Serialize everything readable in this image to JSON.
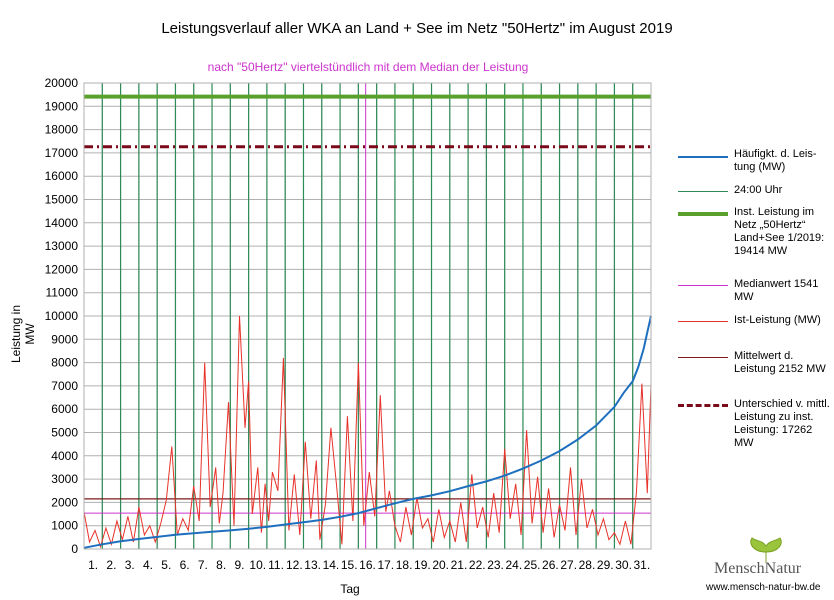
{
  "colors": {
    "frequency": "#1f6fbf",
    "midnight": "#2e8b57",
    "installed": "#5aa02c",
    "median": "#cc33cc",
    "actual": "#e8322a",
    "mean": "#7a1a1a",
    "difference": "#7a0a1a",
    "grid": "#b0b0b0"
  },
  "chart_data": {
    "type": "line",
    "title": "Leistungsverlauf aller WKA an Land + See im Netz \"50Hertz\" im August 2019",
    "subtitle": "nach \"50Hertz\" viertelstündlich mit dem Median der Leistung",
    "xlabel": "Tag",
    "ylabel": "Leistung in MW",
    "ylim": [
      0,
      20000
    ],
    "xlim": [
      0,
      31
    ],
    "y_ticks": [
      0,
      1000,
      2000,
      3000,
      4000,
      5000,
      6000,
      7000,
      8000,
      9000,
      10000,
      11000,
      12000,
      13000,
      14000,
      15000,
      16000,
      17000,
      18000,
      19000,
      20000
    ],
    "x_tick_labels": [
      "1.",
      "2.",
      "3.",
      "4.",
      "5.",
      "6.",
      "7.",
      "8.",
      "9.",
      "10.",
      "11.",
      "12.",
      "13.",
      "14.",
      "15.",
      "16.",
      "17.",
      "18.",
      "19.",
      "20.",
      "21.",
      "22.",
      "23.",
      "24.",
      "25.",
      "26.",
      "27.",
      "28.",
      "29.",
      "30.",
      "31."
    ],
    "series": [
      {
        "name": "Häufigkt. d. Leistung (MW)",
        "kind": "line",
        "x": [
          0,
          1,
          2,
          3,
          4,
          5,
          6,
          7,
          8,
          9,
          10,
          11,
          12,
          13,
          14,
          15,
          16,
          17,
          18,
          19,
          20,
          21,
          22,
          23,
          24,
          25,
          26,
          27,
          28,
          29,
          29.5,
          30,
          30.3,
          30.6,
          30.8,
          31
        ],
        "values": [
          50,
          200,
          330,
          430,
          520,
          610,
          680,
          740,
          800,
          870,
          950,
          1050,
          1150,
          1250,
          1380,
          1541,
          1750,
          1960,
          2150,
          2300,
          2480,
          2700,
          2900,
          3150,
          3450,
          3800,
          4200,
          4700,
          5300,
          6100,
          6700,
          7200,
          7800,
          8600,
          9300,
          10000
        ]
      },
      {
        "name": "Ist-Leistung (MW)",
        "kind": "line",
        "x": [
          0,
          0.3,
          0.6,
          0.9,
          1.2,
          1.5,
          1.8,
          2.1,
          2.4,
          2.7,
          3.0,
          3.3,
          3.6,
          3.9,
          4.2,
          4.5,
          4.8,
          5.1,
          5.4,
          5.7,
          6.0,
          6.3,
          6.6,
          6.9,
          7.2,
          7.4,
          7.6,
          7.9,
          8.2,
          8.5,
          8.8,
          9.0,
          9.2,
          9.5,
          9.7,
          9.9,
          10.1,
          10.3,
          10.6,
          10.9,
          11.2,
          11.5,
          11.8,
          12.1,
          12.4,
          12.7,
          12.9,
          13.2,
          13.5,
          13.8,
          14.1,
          14.4,
          14.7,
          15.0,
          15.3,
          15.6,
          15.9,
          16.2,
          16.5,
          16.7,
          17.0,
          17.3,
          17.6,
          17.9,
          18.2,
          18.5,
          18.8,
          19.1,
          19.4,
          19.7,
          20.0,
          20.3,
          20.6,
          20.9,
          21.2,
          21.5,
          21.8,
          22.1,
          22.4,
          22.7,
          23.0,
          23.3,
          23.6,
          23.9,
          24.2,
          24.5,
          24.8,
          25.1,
          25.4,
          25.7,
          26.0,
          26.3,
          26.6,
          26.9,
          27.2,
          27.5,
          27.8,
          28.1,
          28.4,
          28.7,
          29.0,
          29.3,
          29.6,
          29.9,
          30.2,
          30.5,
          30.8,
          31.0
        ],
        "values": [
          1600,
          300,
          800,
          100,
          900,
          200,
          1200,
          400,
          1400,
          300,
          1800,
          600,
          1000,
          300,
          1100,
          2100,
          4400,
          600,
          1300,
          800,
          2700,
          1200,
          8000,
          1800,
          3500,
          1100,
          2400,
          6300,
          1000,
          10000,
          5200,
          7200,
          1500,
          3500,
          700,
          2800,
          1200,
          3300,
          2500,
          8200,
          800,
          3200,
          600,
          4600,
          1300,
          3800,
          400,
          1900,
          5200,
          2800,
          200,
          5700,
          1200,
          8000,
          1000,
          3300,
          1400,
          6600,
          1600,
          2500,
          1000,
          300,
          1800,
          600,
          2200,
          900,
          1300,
          300,
          1700,
          500,
          1200,
          300,
          2000,
          300,
          3200,
          900,
          1800,
          500,
          2400,
          700,
          4300,
          1300,
          2800,
          600,
          5100,
          1100,
          3100,
          700,
          2600,
          500,
          1900,
          800,
          3500,
          600,
          3000,
          900,
          1700,
          600,
          1300,
          400,
          700,
          200,
          1200,
          200,
          2400,
          7100,
          2400,
          7100
        ]
      },
      {
        "name": "Inst. Leistung im Netz „50Hertz“ Land+See 1/2019: 19414 MW",
        "kind": "hline",
        "value": 19414
      },
      {
        "name": "Unterschied v. mittl. Leistung zu inst. Leistung: 17262 MW",
        "kind": "hline",
        "value": 17262
      },
      {
        "name": "Mittelwert d. Leistung 2152 MW",
        "kind": "hline",
        "value": 2152
      },
      {
        "name": "Medianwert 1541 MW",
        "kind": "hline",
        "value": 1541
      },
      {
        "name": "24:00 Uhr",
        "kind": "vlines"
      }
    ],
    "median_marker_day": 15.4,
    "legend": [
      {
        "key": "frequency",
        "label": "Häufigkt. d. Leis-tung (MW)"
      },
      {
        "key": "midnight",
        "label": "24:00 Uhr"
      },
      {
        "key": "installed",
        "label": "Inst. Leistung im Netz „50Hertz“ Land+See 1/2019: 19414 MW"
      },
      {
        "key": "median",
        "label": "Medianwert 1541 MW"
      },
      {
        "key": "actual",
        "label": "Ist-Leistung (MW)"
      },
      {
        "key": "mean",
        "label": "Mittelwert d. Leistung 2152 MW"
      },
      {
        "key": "difference",
        "label": "Unterschied v. mittl. Leistung zu inst. Leistung: 17262 MW"
      }
    ]
  },
  "branding": {
    "logo_name": "MenschNatur",
    "logo_url": "www.mensch-natur-bw.de"
  }
}
